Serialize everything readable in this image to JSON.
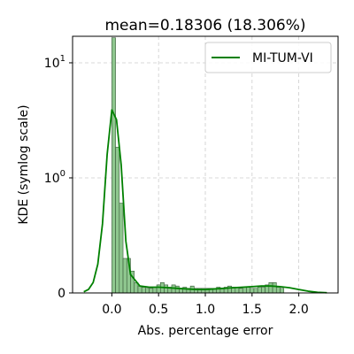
{
  "chart_data": {
    "type": "histogram+kde",
    "title": "mean=0.18306 (18.306%)",
    "xlabel": "Abs. percentage error",
    "ylabel": "KDE (symlog scale)",
    "xlim": [
      -0.42,
      2.42
    ],
    "ylim": [
      0,
      17
    ],
    "y_scale": "symlog",
    "y_linthresh": 1,
    "x_ticks": [
      {
        "value": 0.0,
        "label": "0.0"
      },
      {
        "value": 0.5,
        "label": "0.5"
      },
      {
        "value": 1.0,
        "label": "1.0"
      },
      {
        "value": 1.5,
        "label": "1.5"
      },
      {
        "value": 2.0,
        "label": "2.0"
      }
    ],
    "y_ticks": [
      {
        "value": 0,
        "base": "0",
        "exp": ""
      },
      {
        "value": 1,
        "base": "10",
        "exp": "0"
      },
      {
        "value": 10,
        "base": "10",
        "exp": "1"
      }
    ],
    "grid": true,
    "legend": {
      "placement": "top-right",
      "entries": [
        {
          "name": "MI-TUM-VI",
          "color": "#008000"
        }
      ]
    },
    "colors": {
      "kde": "#008000",
      "bar_fill": "#8fc78f",
      "bar_edge": "#3a5a3a",
      "grid": "#cccccc"
    },
    "histogram": {
      "bin_start": 0.0,
      "bin_width": 0.04,
      "values": [
        16.5,
        1.85,
        0.78,
        0.3,
        0.3,
        0.19,
        0.09,
        0.06,
        0.05,
        0.04,
        0.04,
        0.05,
        0.07,
        0.09,
        0.07,
        0.05,
        0.07,
        0.06,
        0.04,
        0.05,
        0.04,
        0.06,
        0.04,
        0.04,
        0.04,
        0.04,
        0.04,
        0.04,
        0.05,
        0.04,
        0.05,
        0.06,
        0.05,
        0.05,
        0.04,
        0.05,
        0.05,
        0.04,
        0.04,
        0.05,
        0.05,
        0.07,
        0.09,
        0.09,
        0.05,
        0.04
      ]
    },
    "series": [
      {
        "name": "MI-TUM-VI",
        "type": "kde",
        "x": [
          -0.3,
          -0.25,
          -0.2,
          -0.15,
          -0.1,
          -0.05,
          0.0,
          0.05,
          0.1,
          0.15,
          0.2,
          0.3,
          0.4,
          0.5,
          0.6,
          0.7,
          0.8,
          0.9,
          1.0,
          1.1,
          1.2,
          1.3,
          1.4,
          1.5,
          1.6,
          1.7,
          1.8,
          1.9,
          2.0,
          2.1,
          2.2,
          2.3
        ],
        "y": [
          0.01,
          0.03,
          0.09,
          0.25,
          0.6,
          1.6,
          3.9,
          3.2,
          1.3,
          0.45,
          0.16,
          0.06,
          0.05,
          0.05,
          0.045,
          0.04,
          0.035,
          0.03,
          0.03,
          0.035,
          0.04,
          0.045,
          0.05,
          0.055,
          0.06,
          0.06,
          0.055,
          0.045,
          0.03,
          0.015,
          0.006,
          0.002
        ]
      }
    ]
  }
}
